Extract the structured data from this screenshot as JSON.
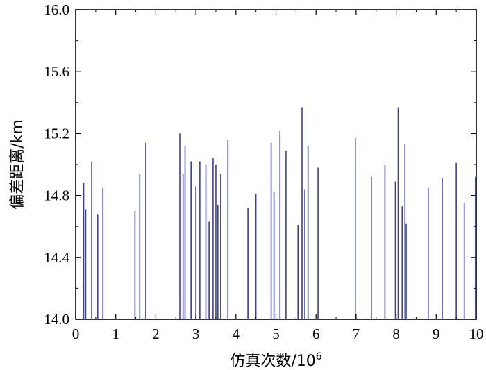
{
  "chart_data": {
    "type": "bar",
    "style": "stem",
    "xlabel": "仿真次数/10",
    "xlabel_superscript": "6",
    "ylabel": "偏差距离/km",
    "xlim": [
      0,
      10
    ],
    "ylim": [
      14.0,
      16.0
    ],
    "xticks": [
      "0",
      "1",
      "2",
      "3",
      "4",
      "5",
      "6",
      "7",
      "8",
      "9",
      "10"
    ],
    "yticks": [
      "14.0",
      "14.4",
      "14.8",
      "15.2",
      "15.6",
      "16.0"
    ],
    "grid": false,
    "bar_color": "#3b3f96",
    "x": [
      0.2,
      0.25,
      0.4,
      0.55,
      0.68,
      1.48,
      1.6,
      1.75,
      2.6,
      2.68,
      2.73,
      2.88,
      3.0,
      3.1,
      3.25,
      3.33,
      3.43,
      3.5,
      3.55,
      3.62,
      3.8,
      4.3,
      4.5,
      4.88,
      4.95,
      5.1,
      5.25,
      5.55,
      5.65,
      5.72,
      5.8,
      6.05,
      6.98,
      7.38,
      7.72,
      7.98,
      8.05,
      8.15,
      8.22,
      8.25,
      8.8,
      9.15,
      9.5,
      9.7,
      9.98
    ],
    "values": [
      14.88,
      14.71,
      15.02,
      14.68,
      14.85,
      14.7,
      14.94,
      15.14,
      15.2,
      14.94,
      15.12,
      15.02,
      14.86,
      15.02,
      15.0,
      14.63,
      15.04,
      15.0,
      14.74,
      14.94,
      15.16,
      14.72,
      14.81,
      15.14,
      14.82,
      15.22,
      15.09,
      14.61,
      15.37,
      14.84,
      15.12,
      14.98,
      15.17,
      14.92,
      15.0,
      14.89,
      15.37,
      14.73,
      15.13,
      14.62,
      14.85,
      14.91,
      15.01,
      14.75,
      14.92
    ]
  }
}
